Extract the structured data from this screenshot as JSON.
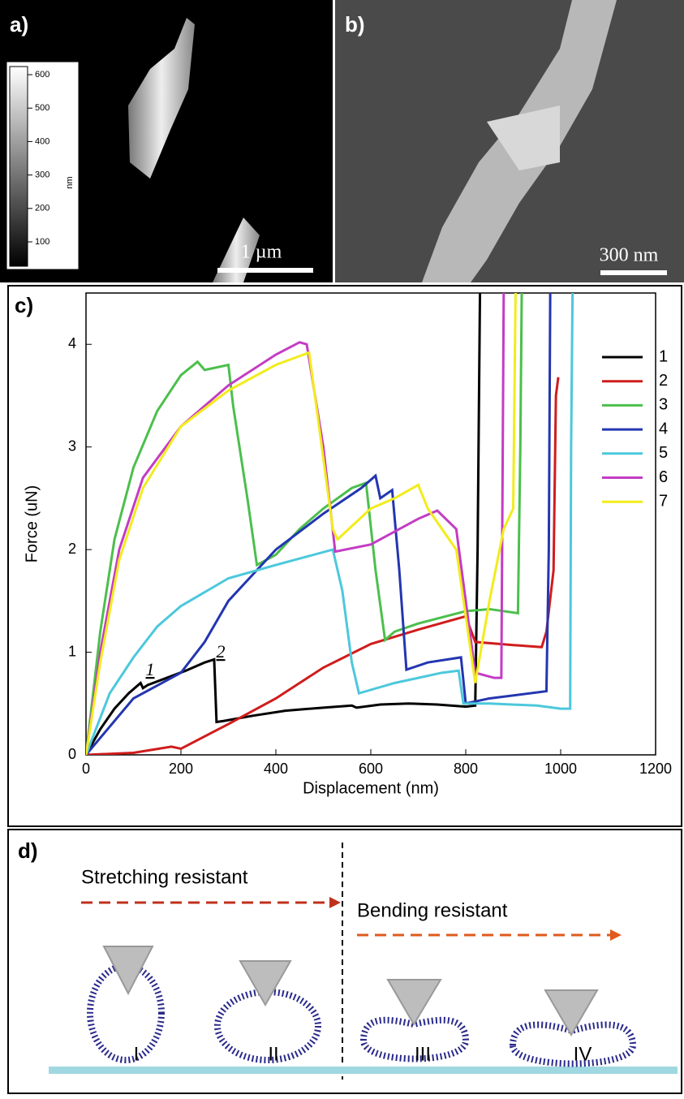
{
  "panel_a": {
    "label": "a)",
    "colorbar_ticks": [
      600,
      500,
      400,
      300,
      200,
      100
    ],
    "colorbar_unit": "nm",
    "scale_bar": "1 µm"
  },
  "panel_b": {
    "label": "b)",
    "scale_bar": "300 nm"
  },
  "chart_data": {
    "type": "line",
    "label": "c)",
    "x_label": "Displacement (nm)",
    "y_label": "Force (uN)",
    "xlim": [
      0,
      1200
    ],
    "ylim": [
      0,
      4.5
    ],
    "xticks": [
      0,
      200,
      400,
      600,
      800,
      1000,
      1200
    ],
    "yticks": [
      0,
      1,
      2,
      3,
      4
    ],
    "legend": "right",
    "annotations": [
      "1",
      "2"
    ],
    "series": [
      {
        "name": "1",
        "color": "#000000",
        "x": [
          0,
          30,
          60,
          90,
          115,
          120,
          130,
          170,
          210,
          250,
          270,
          275,
          290,
          350,
          420,
          500,
          560,
          570,
          620,
          680,
          740,
          800,
          820,
          825,
          830
        ],
        "values": [
          0,
          0.25,
          0.45,
          0.6,
          0.7,
          0.65,
          0.68,
          0.75,
          0.82,
          0.9,
          0.93,
          0.32,
          0.33,
          0.38,
          0.43,
          0.46,
          0.48,
          0.46,
          0.49,
          0.5,
          0.49,
          0.47,
          0.48,
          2.0,
          4.5
        ]
      },
      {
        "name": "2",
        "color": "#d01c1c",
        "x": [
          0,
          100,
          180,
          200,
          300,
          400,
          500,
          600,
          700,
          800,
          820,
          900,
          960,
          970,
          985,
          990,
          995
        ],
        "values": [
          0,
          0.02,
          0.08,
          0.06,
          0.3,
          0.55,
          0.85,
          1.08,
          1.22,
          1.35,
          1.1,
          1.07,
          1.05,
          1.2,
          1.8,
          3.5,
          3.68
        ]
      },
      {
        "name": "3",
        "color": "#4cbf4c",
        "x": [
          0,
          30,
          60,
          100,
          150,
          200,
          235,
          250,
          300,
          310,
          340,
          360,
          400,
          450,
          500,
          560,
          590,
          610,
          630,
          650,
          700,
          800,
          850,
          910,
          915,
          918
        ],
        "values": [
          0,
          1.2,
          2.1,
          2.8,
          3.35,
          3.7,
          3.83,
          3.75,
          3.8,
          3.4,
          2.5,
          1.85,
          1.95,
          2.2,
          2.4,
          2.6,
          2.65,
          1.8,
          1.12,
          1.2,
          1.28,
          1.4,
          1.42,
          1.38,
          3.0,
          4.5
        ]
      },
      {
        "name": "4",
        "color": "#2336b0",
        "x": [
          0,
          100,
          200,
          250,
          300,
          350,
          400,
          500,
          580,
          610,
          620,
          645,
          660,
          675,
          720,
          790,
          800,
          850,
          970,
          975,
          978
        ],
        "values": [
          0,
          0.55,
          0.8,
          1.1,
          1.5,
          1.75,
          2.0,
          2.35,
          2.6,
          2.72,
          2.5,
          2.58,
          1.8,
          0.83,
          0.9,
          0.95,
          0.5,
          0.55,
          0.62,
          2.0,
          4.5
        ]
      },
      {
        "name": "5",
        "color": "#4cc8dc",
        "x": [
          0,
          50,
          100,
          150,
          200,
          300,
          400,
          520,
          540,
          560,
          575,
          650,
          750,
          785,
          795,
          850,
          950,
          1000,
          1020,
          1022,
          1025
        ],
        "values": [
          0,
          0.6,
          0.95,
          1.25,
          1.45,
          1.72,
          1.85,
          2.0,
          1.6,
          0.9,
          0.6,
          0.7,
          0.8,
          0.82,
          0.5,
          0.5,
          0.48,
          0.45,
          0.45,
          3.0,
          4.5
        ]
      },
      {
        "name": "6",
        "color": "#c43cc4",
        "x": [
          0,
          30,
          70,
          120,
          200,
          300,
          400,
          450,
          465,
          500,
          525,
          600,
          700,
          740,
          780,
          820,
          860,
          875,
          880
        ],
        "values": [
          0,
          1.0,
          2.0,
          2.7,
          3.2,
          3.6,
          3.9,
          4.02,
          4.0,
          3.0,
          1.98,
          2.05,
          2.3,
          2.38,
          2.2,
          0.8,
          0.75,
          0.75,
          4.5
        ]
      },
      {
        "name": "7",
        "color": "#f2ec1c",
        "x": [
          0,
          30,
          70,
          120,
          200,
          300,
          400,
          470,
          520,
          530,
          600,
          650,
          700,
          720,
          780,
          820,
          850,
          880,
          900,
          905
        ],
        "values": [
          0,
          0.9,
          1.9,
          2.6,
          3.2,
          3.55,
          3.8,
          3.92,
          2.2,
          2.1,
          2.4,
          2.5,
          2.63,
          2.4,
          2.0,
          0.7,
          1.5,
          2.2,
          2.4,
          4.5
        ]
      }
    ]
  },
  "panel_d": {
    "label": "d)",
    "arrows": [
      "Stretching resistant",
      "Bending resistant"
    ],
    "stages": [
      "I",
      "II",
      "III",
      "IV"
    ]
  }
}
